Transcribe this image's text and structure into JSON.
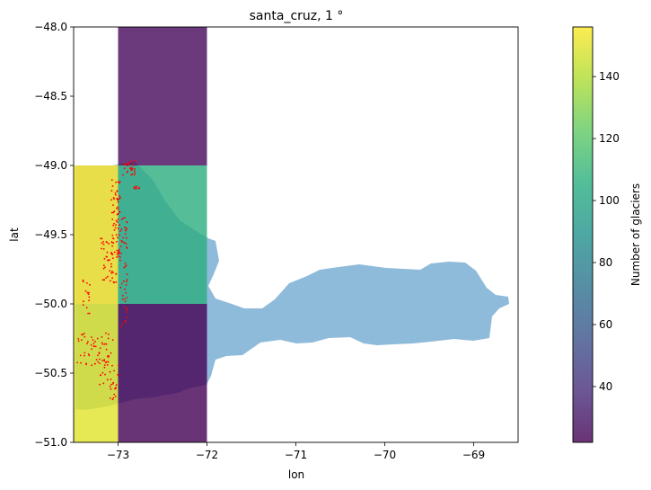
{
  "chart_data": {
    "type": "heatmap",
    "title": "santa_cruz, 1 °",
    "xlabel": "lon",
    "ylabel": "lat",
    "xlim": [
      -73.5,
      -68.5
    ],
    "ylim": [
      -51.0,
      -48.0
    ],
    "xticks": [
      -73,
      -72,
      -71,
      -70,
      -69
    ],
    "xtick_labels": [
      "−73",
      "−72",
      "−71",
      "−70",
      "−69"
    ],
    "yticks": [
      -48.0,
      -48.5,
      -49.0,
      -49.5,
      -50.0,
      -50.5,
      -51.0
    ],
    "ytick_labels": [
      "−48.0",
      "−48.5",
      "−49.0",
      "−49.5",
      "−50.0",
      "−50.5",
      "−51.0"
    ],
    "grid": false,
    "colorbar": {
      "label": "Number of glaciers",
      "colormap": "viridis",
      "range": [
        22,
        156
      ],
      "ticks": [
        40,
        60,
        80,
        100,
        120,
        140
      ],
      "tick_labels": [
        "40",
        "60",
        "80",
        "100",
        "120",
        "140"
      ]
    },
    "cells": [
      {
        "lon": [
          -74,
          -73
        ],
        "lat": [
          -50,
          -49
        ],
        "count": 156
      },
      {
        "lon": [
          -74,
          -73
        ],
        "lat": [
          -51,
          -50
        ],
        "count": 150
      },
      {
        "lon": [
          -73,
          -72
        ],
        "lat": [
          -49,
          -48
        ],
        "count": 25
      },
      {
        "lon": [
          -73,
          -72
        ],
        "lat": [
          -50,
          -49
        ],
        "count": 105
      },
      {
        "lon": [
          -73,
          -72
        ],
        "lat": [
          -51,
          -50
        ],
        "count": 22
      }
    ],
    "cell_alpha": 0.8,
    "basin_color": "#8fbbda",
    "glacier_point_color": "#ff0000"
  }
}
